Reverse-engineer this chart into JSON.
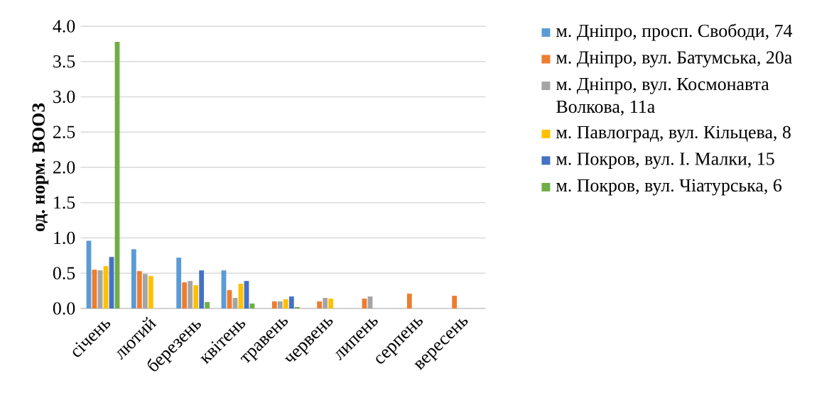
{
  "chart_data": {
    "type": "bar",
    "ylabel": "од. норм. ВООЗ",
    "categories": [
      "січень",
      "лютий",
      "березень",
      "квітень",
      "травень",
      "червень",
      "липень",
      "серпень",
      "вересень"
    ],
    "series": [
      {
        "name": "м. Дніпро, просп. Свободи, 74",
        "color": "#5b9bd5",
        "values": [
          0.96,
          0.84,
          0.72,
          0.54,
          null,
          null,
          null,
          null,
          null
        ]
      },
      {
        "name": "м. Дніпро, вул. Батумська, 20а",
        "color": "#ed7d31",
        "values": [
          0.55,
          0.53,
          0.37,
          0.26,
          0.1,
          0.1,
          0.14,
          0.21,
          0.18
        ]
      },
      {
        "name": "м. Дніпро, вул. Космонавта Волкова, 11а",
        "color": "#a5a5a5",
        "values": [
          0.54,
          0.49,
          0.39,
          0.15,
          0.1,
          0.15,
          0.17,
          null,
          null
        ]
      },
      {
        "name": "м. Павлоград, вул. Кільцева, 8",
        "color": "#ffc000",
        "values": [
          0.6,
          0.46,
          0.33,
          0.35,
          0.13,
          0.14,
          null,
          null,
          null
        ]
      },
      {
        "name": "м. Покров, вул. І. Малки, 15",
        "color": "#4472c4",
        "values": [
          0.73,
          null,
          0.54,
          0.39,
          0.17,
          null,
          null,
          null,
          null
        ]
      },
      {
        "name": "м. Покров, вул. Чіатурська, 6",
        "color": "#70ad47",
        "values": [
          3.78,
          null,
          0.09,
          0.07,
          0.02,
          null,
          null,
          null,
          null
        ]
      }
    ],
    "ylim": [
      0,
      4
    ],
    "yticks": [
      {
        "value": 0,
        "label": "0.0"
      },
      {
        "value": 0.5,
        "label": "0.5"
      },
      {
        "value": 1,
        "label": "1.0"
      },
      {
        "value": 1.5,
        "label": "1.5"
      },
      {
        "value": 2,
        "label": "2.0"
      },
      {
        "value": 2.5,
        "label": "2.5"
      },
      {
        "value": 3,
        "label": "3.0"
      },
      {
        "value": 3.5,
        "label": "3.5"
      },
      {
        "value": 4,
        "label": "4.0"
      }
    ],
    "grid": "y",
    "legend": "right"
  }
}
